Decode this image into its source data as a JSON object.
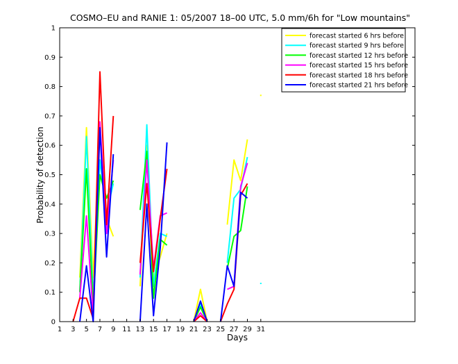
{
  "chart_data": {
    "type": "line",
    "title": "COSMO–EU and RANIE 1: 05/2007 18–00 UTC, 5.0 mm/6h for \"Low mountains\"",
    "xlabel": "Days",
    "ylabel": "Probability of detection",
    "xlim": [
      1,
      54
    ],
    "ylim": [
      0,
      1
    ],
    "xticks": [
      1,
      3,
      5,
      7,
      9,
      11,
      13,
      15,
      17,
      19,
      21,
      23,
      25,
      27,
      29,
      31
    ],
    "yticks": [
      0,
      0.1,
      0.2,
      0.3,
      0.4,
      0.5,
      0.6,
      0.7,
      0.8,
      0.9,
      1
    ],
    "ytick_labels": [
      "0",
      "0.1",
      "0.2",
      "0.3",
      "0.4",
      "0.5",
      "0.6",
      "0.7",
      "0.8",
      "0.9",
      "1"
    ],
    "grid": false,
    "legend_position": "top-right",
    "series": [
      {
        "name": "forecast started 6 hrs before",
        "color": "#ffff00",
        "points": [
          [
            4,
            0.15
          ],
          [
            5,
            0.66
          ],
          [
            6,
            0.15
          ],
          [
            7,
            0.65
          ],
          [
            8,
            0.35
          ],
          [
            9,
            0.29
          ],
          [
            null,
            null
          ],
          [
            13,
            0.12
          ],
          [
            14,
            0.6
          ],
          [
            15,
            0.15
          ],
          [
            16,
            0.22
          ],
          [
            17,
            0.3
          ],
          [
            null,
            null
          ],
          [
            21,
            0.0
          ],
          [
            22,
            0.11
          ],
          [
            23,
            0.0
          ],
          [
            null,
            null
          ],
          [
            26,
            0.33
          ],
          [
            27,
            0.55
          ],
          [
            28,
            0.48
          ],
          [
            29,
            0.62
          ],
          [
            null,
            null
          ],
          [
            31,
            0.77
          ]
        ]
      },
      {
        "name": "forecast started 9 hrs before",
        "color": "#00ffff",
        "points": [
          [
            4,
            0.1
          ],
          [
            5,
            0.63
          ],
          [
            6,
            0.08
          ],
          [
            7,
            0.55
          ],
          [
            8,
            0.37
          ],
          [
            9,
            0.47
          ],
          [
            null,
            null
          ],
          [
            13,
            0.15
          ],
          [
            14,
            0.67
          ],
          [
            15,
            0.12
          ],
          [
            16,
            0.3
          ],
          [
            17,
            0.29
          ],
          [
            null,
            null
          ],
          [
            21,
            0.0
          ],
          [
            22,
            0.06
          ],
          [
            23,
            0.0
          ],
          [
            null,
            null
          ],
          [
            26,
            0.2
          ],
          [
            27,
            0.42
          ],
          [
            28,
            0.45
          ],
          [
            29,
            0.56
          ],
          [
            null,
            null
          ],
          [
            31,
            0.13
          ]
        ]
      },
      {
        "name": "forecast started 12 hrs before",
        "color": "#00ff00",
        "points": [
          [
            4,
            0.1
          ],
          [
            5,
            0.52
          ],
          [
            6,
            0.05
          ],
          [
            7,
            0.5
          ],
          [
            8,
            0.42
          ],
          [
            9,
            0.48
          ],
          [
            null,
            null
          ],
          [
            13,
            0.38
          ],
          [
            14,
            0.58
          ],
          [
            15,
            0.08
          ],
          [
            16,
            0.28
          ],
          [
            17,
            0.26
          ],
          [
            null,
            null
          ],
          [
            21,
            0.0
          ],
          [
            22,
            0.05
          ],
          [
            23,
            0.0
          ],
          [
            null,
            null
          ],
          [
            26,
            0.18
          ],
          [
            27,
            0.29
          ],
          [
            28,
            0.31
          ],
          [
            29,
            0.46
          ]
        ]
      },
      {
        "name": "forecast started 15 hrs before",
        "color": "#ff00ff",
        "points": [
          [
            4,
            0.08
          ],
          [
            5,
            0.36
          ],
          [
            6,
            0.02
          ],
          [
            7,
            0.68
          ],
          [
            8,
            0.3
          ],
          [
            9,
            0.55
          ],
          [
            null,
            null
          ],
          [
            13,
            0.16
          ],
          [
            14,
            0.55
          ],
          [
            15,
            0.18
          ],
          [
            16,
            0.36
          ],
          [
            17,
            0.37
          ],
          [
            null,
            null
          ],
          [
            21,
            0.0
          ],
          [
            22,
            0.03
          ],
          [
            23,
            0.0
          ],
          [
            null,
            null
          ],
          [
            26,
            0.11
          ],
          [
            27,
            0.12
          ],
          [
            28,
            0.46
          ],
          [
            29,
            0.54
          ]
        ]
      },
      {
        "name": "forecast started 18 hrs before",
        "color": "#ff0000",
        "points": [
          [
            3,
            0.0
          ],
          [
            4,
            0.08
          ],
          [
            5,
            0.08
          ],
          [
            6,
            0.01
          ],
          [
            7,
            0.85
          ],
          [
            8,
            0.33
          ],
          [
            9,
            0.7
          ],
          [
            null,
            null
          ],
          [
            13,
            0.2
          ],
          [
            14,
            0.47
          ],
          [
            15,
            0.17
          ],
          [
            16,
            0.35
          ],
          [
            17,
            0.52
          ],
          [
            null,
            null
          ],
          [
            21,
            0.0
          ],
          [
            22,
            0.02
          ],
          [
            23,
            0.0
          ],
          [
            null,
            null
          ],
          [
            25,
            0.0
          ],
          [
            26,
            0.06
          ],
          [
            27,
            0.11
          ],
          [
            28,
            0.43
          ],
          [
            29,
            0.47
          ]
        ]
      },
      {
        "name": "forecast started 21 hrs before",
        "color": "#0000ff",
        "points": [
          [
            4,
            0.0
          ],
          [
            5,
            0.19
          ],
          [
            6,
            0.0
          ],
          [
            7,
            0.66
          ],
          [
            8,
            0.22
          ],
          [
            9,
            0.57
          ],
          [
            null,
            null
          ],
          [
            13,
            0.0
          ],
          [
            14,
            0.4
          ],
          [
            15,
            0.02
          ],
          [
            16,
            0.25
          ],
          [
            17,
            0.61
          ],
          [
            null,
            null
          ],
          [
            21,
            0.0
          ],
          [
            22,
            0.07
          ],
          [
            23,
            0.0
          ],
          [
            null,
            null
          ],
          [
            25,
            0.0
          ],
          [
            26,
            0.19
          ],
          [
            27,
            0.12
          ],
          [
            28,
            0.44
          ],
          [
            29,
            0.42
          ]
        ]
      }
    ]
  }
}
